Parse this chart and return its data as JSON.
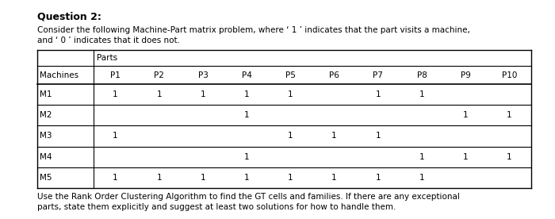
{
  "title": "Question 2:",
  "intro_line1": "Consider the following Machine-Part matrix problem, where ‘ 1 ’ indicates that the part visits a machine,",
  "intro_line2": "and ‘ 0 ’ indicates that it does not.",
  "footer_line1": "Use the Rank Order Clustering Algorithm to find the GT cells and families. If there are any exceptional",
  "footer_line2": "parts, state them explicitly and suggest at least two solutions for how to handle them.",
  "parts_label": "Parts",
  "machines_label": "Machines",
  "col_headers": [
    "P1",
    "P2",
    "P3",
    "P4",
    "P5",
    "P6",
    "P7",
    "P8",
    "P9",
    "P10"
  ],
  "row_headers": [
    "M1",
    "M2",
    "M3",
    "M4",
    "M5"
  ],
  "matrix": [
    [
      1,
      1,
      1,
      1,
      1,
      0,
      1,
      1,
      0,
      0
    ],
    [
      0,
      0,
      0,
      1,
      0,
      0,
      0,
      0,
      1,
      1
    ],
    [
      1,
      0,
      0,
      0,
      1,
      1,
      1,
      0,
      0,
      0
    ],
    [
      0,
      0,
      0,
      1,
      0,
      0,
      0,
      1,
      1,
      1
    ],
    [
      1,
      1,
      1,
      1,
      1,
      1,
      1,
      1,
      0,
      0
    ]
  ],
  "bg_color": "#ffffff",
  "text_color": "#000000",
  "border_color": "#000000",
  "font_size_title": 9,
  "font_size_body": 7.5,
  "font_size_table": 7.5
}
